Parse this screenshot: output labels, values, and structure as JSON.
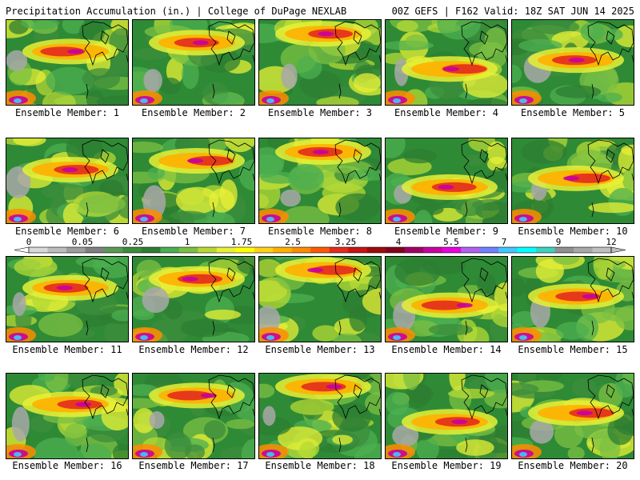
{
  "header": {
    "title_left": "Precipitation Accumulation (in.) | College of DuPage NEXLAB",
    "title_right": "00Z GEFS | F162 Valid: 18Z SAT JUN 14 2025"
  },
  "members": [
    "Ensemble Member: 1",
    "Ensemble Member: 2",
    "Ensemble Member: 3",
    "Ensemble Member: 4",
    "Ensemble Member: 5",
    "Ensemble Member: 6",
    "Ensemble Member: 7",
    "Ensemble Member: 8",
    "Ensemble Member: 9",
    "Ensemble Member: 10",
    "Ensemble Member: 11",
    "Ensemble Member: 12",
    "Ensemble Member: 13",
    "Ensemble Member: 14",
    "Ensemble Member: 15",
    "Ensemble Member: 16",
    "Ensemble Member: 17",
    "Ensemble Member: 18",
    "Ensemble Member: 19",
    "Ensemble Member: 20"
  ],
  "colorbar": {
    "tick_labels": [
      "0",
      "0.05",
      "0.25",
      "1",
      "1.75",
      "2.5",
      "3.25",
      "4",
      "5.5",
      "7",
      "9",
      "12"
    ],
    "colors": [
      "#d9d9d9",
      "#bdbdbd",
      "#9e9e9e",
      "#808080",
      "#5a9a55",
      "#3c8c3c",
      "#2e7d32",
      "#4caf50",
      "#7cc043",
      "#b6d935",
      "#e8f036",
      "#ffff00",
      "#ffd21a",
      "#ffb000",
      "#ff8c00",
      "#ff5a00",
      "#e32b1e",
      "#c81414",
      "#a00a0a",
      "#80051a",
      "#a00064",
      "#c800a0",
      "#e800e0",
      "#b060f0",
      "#7080ff",
      "#40c8ff",
      "#00ffff",
      "#40d0c0",
      "#909090",
      "#a8a8a8",
      "#c0c0c0"
    ]
  }
}
